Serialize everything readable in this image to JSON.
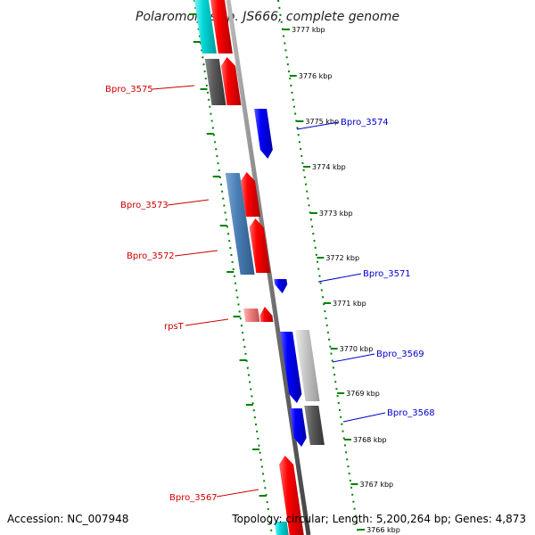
{
  "title": "Polaromonas sp. JS666, complete genome",
  "accession_label": "Accession: NC_007948",
  "topology_label": "Topology: circular; Length: 5,200,264 bp; Genes: 4,873",
  "colors": {
    "forward": "#ff0000",
    "reverse": "#0000ff",
    "backbone": "#888888",
    "ruler": "#008000",
    "cyan": "#00d6d6",
    "darkgray": "#555555",
    "steelblue": "#4a7fb5",
    "lightgray": "#c8c8c8",
    "pink": "#f08080"
  },
  "ticks": [
    {
      "label": "3777 kbp"
    },
    {
      "label": "3776 kbp"
    },
    {
      "label": "3775 kbp"
    },
    {
      "label": "3774 kbp"
    },
    {
      "label": "3773 kbp"
    },
    {
      "label": "3772 kbp"
    },
    {
      "label": "3771 kbp"
    },
    {
      "label": "3770 kbp"
    },
    {
      "label": "3769 kbp"
    },
    {
      "label": "3768 kbp"
    },
    {
      "label": "3767 kbp"
    },
    {
      "label": "3766 kbp"
    }
  ],
  "gene_labels_left": [
    {
      "text": "Bpro_3575"
    },
    {
      "text": "Bpro_3573"
    },
    {
      "text": "Bpro_3572"
    },
    {
      "text": "rpsT"
    },
    {
      "text": "Bpro_3567"
    }
  ],
  "gene_labels_right": [
    {
      "text": "Bpro_3574"
    },
    {
      "text": "Bpro_3571"
    },
    {
      "text": "Bpro_3569"
    },
    {
      "text": "Bpro_3568"
    }
  ]
}
